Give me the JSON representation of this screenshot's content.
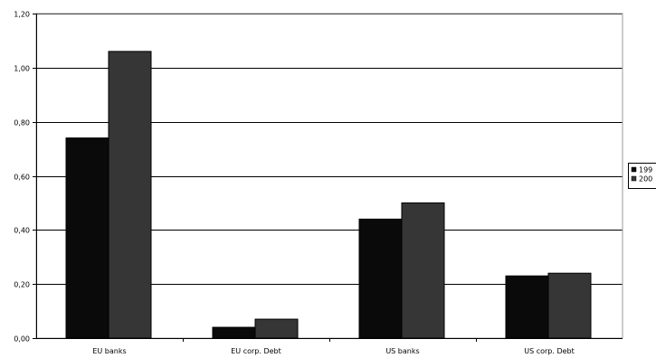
{
  "chart_data": {
    "type": "bar",
    "title": "",
    "xlabel": "",
    "ylabel": "",
    "categories": [
      "EU banks",
      "EU corp. Debt",
      "US banks",
      "US corp. Debt"
    ],
    "series": [
      {
        "name": "199",
        "color": "#0a0a0a",
        "values": [
          0.74,
          0.04,
          0.44,
          0.23
        ]
      },
      {
        "name": "200",
        "color": "#363636",
        "values": [
          1.06,
          0.07,
          0.5,
          0.24
        ]
      }
    ],
    "ylim": [
      0,
      1.2
    ],
    "y_ticks": [
      "0,00",
      "0,20",
      "0,40",
      "0,60",
      "0,80",
      "1,00",
      "1,20"
    ],
    "y_tick_values": [
      0,
      0.2,
      0.4,
      0.6,
      0.8,
      1.0,
      1.2
    ],
    "grid": true,
    "legend_position": "right",
    "colors": {
      "background": "#ffffff",
      "gridline": "#000000",
      "axis": "#000000",
      "bar_border": "#000000"
    }
  }
}
